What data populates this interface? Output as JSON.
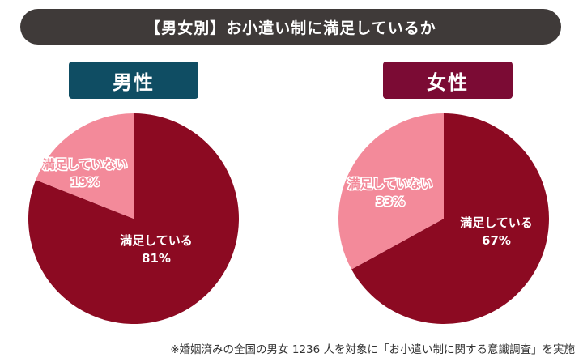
{
  "title": "【男女別】お小遣い制に満足しているか",
  "footnote": "※婚姻済みの全国の男女 1236 人を対象に「お小遣い制に関する意識調査」を実施",
  "colors": {
    "title_bg": "#3f3a39",
    "male_label_bg": "#0f4d63",
    "female_label_bg": "#7b0b34",
    "satisfied": "#8c0a22",
    "not_satisfied": "#f38a9a"
  },
  "chart_data": [
    {
      "type": "pie",
      "title": "男性",
      "slices": [
        {
          "label": "満足している",
          "value": 81,
          "value_label": "81%"
        },
        {
          "label": "満足していない",
          "value": 19,
          "value_label": "19%"
        }
      ]
    },
    {
      "type": "pie",
      "title": "女性",
      "slices": [
        {
          "label": "満足している",
          "value": 67,
          "value_label": "67%"
        },
        {
          "label": "満足していない",
          "value": 33,
          "value_label": "33%"
        }
      ]
    }
  ]
}
